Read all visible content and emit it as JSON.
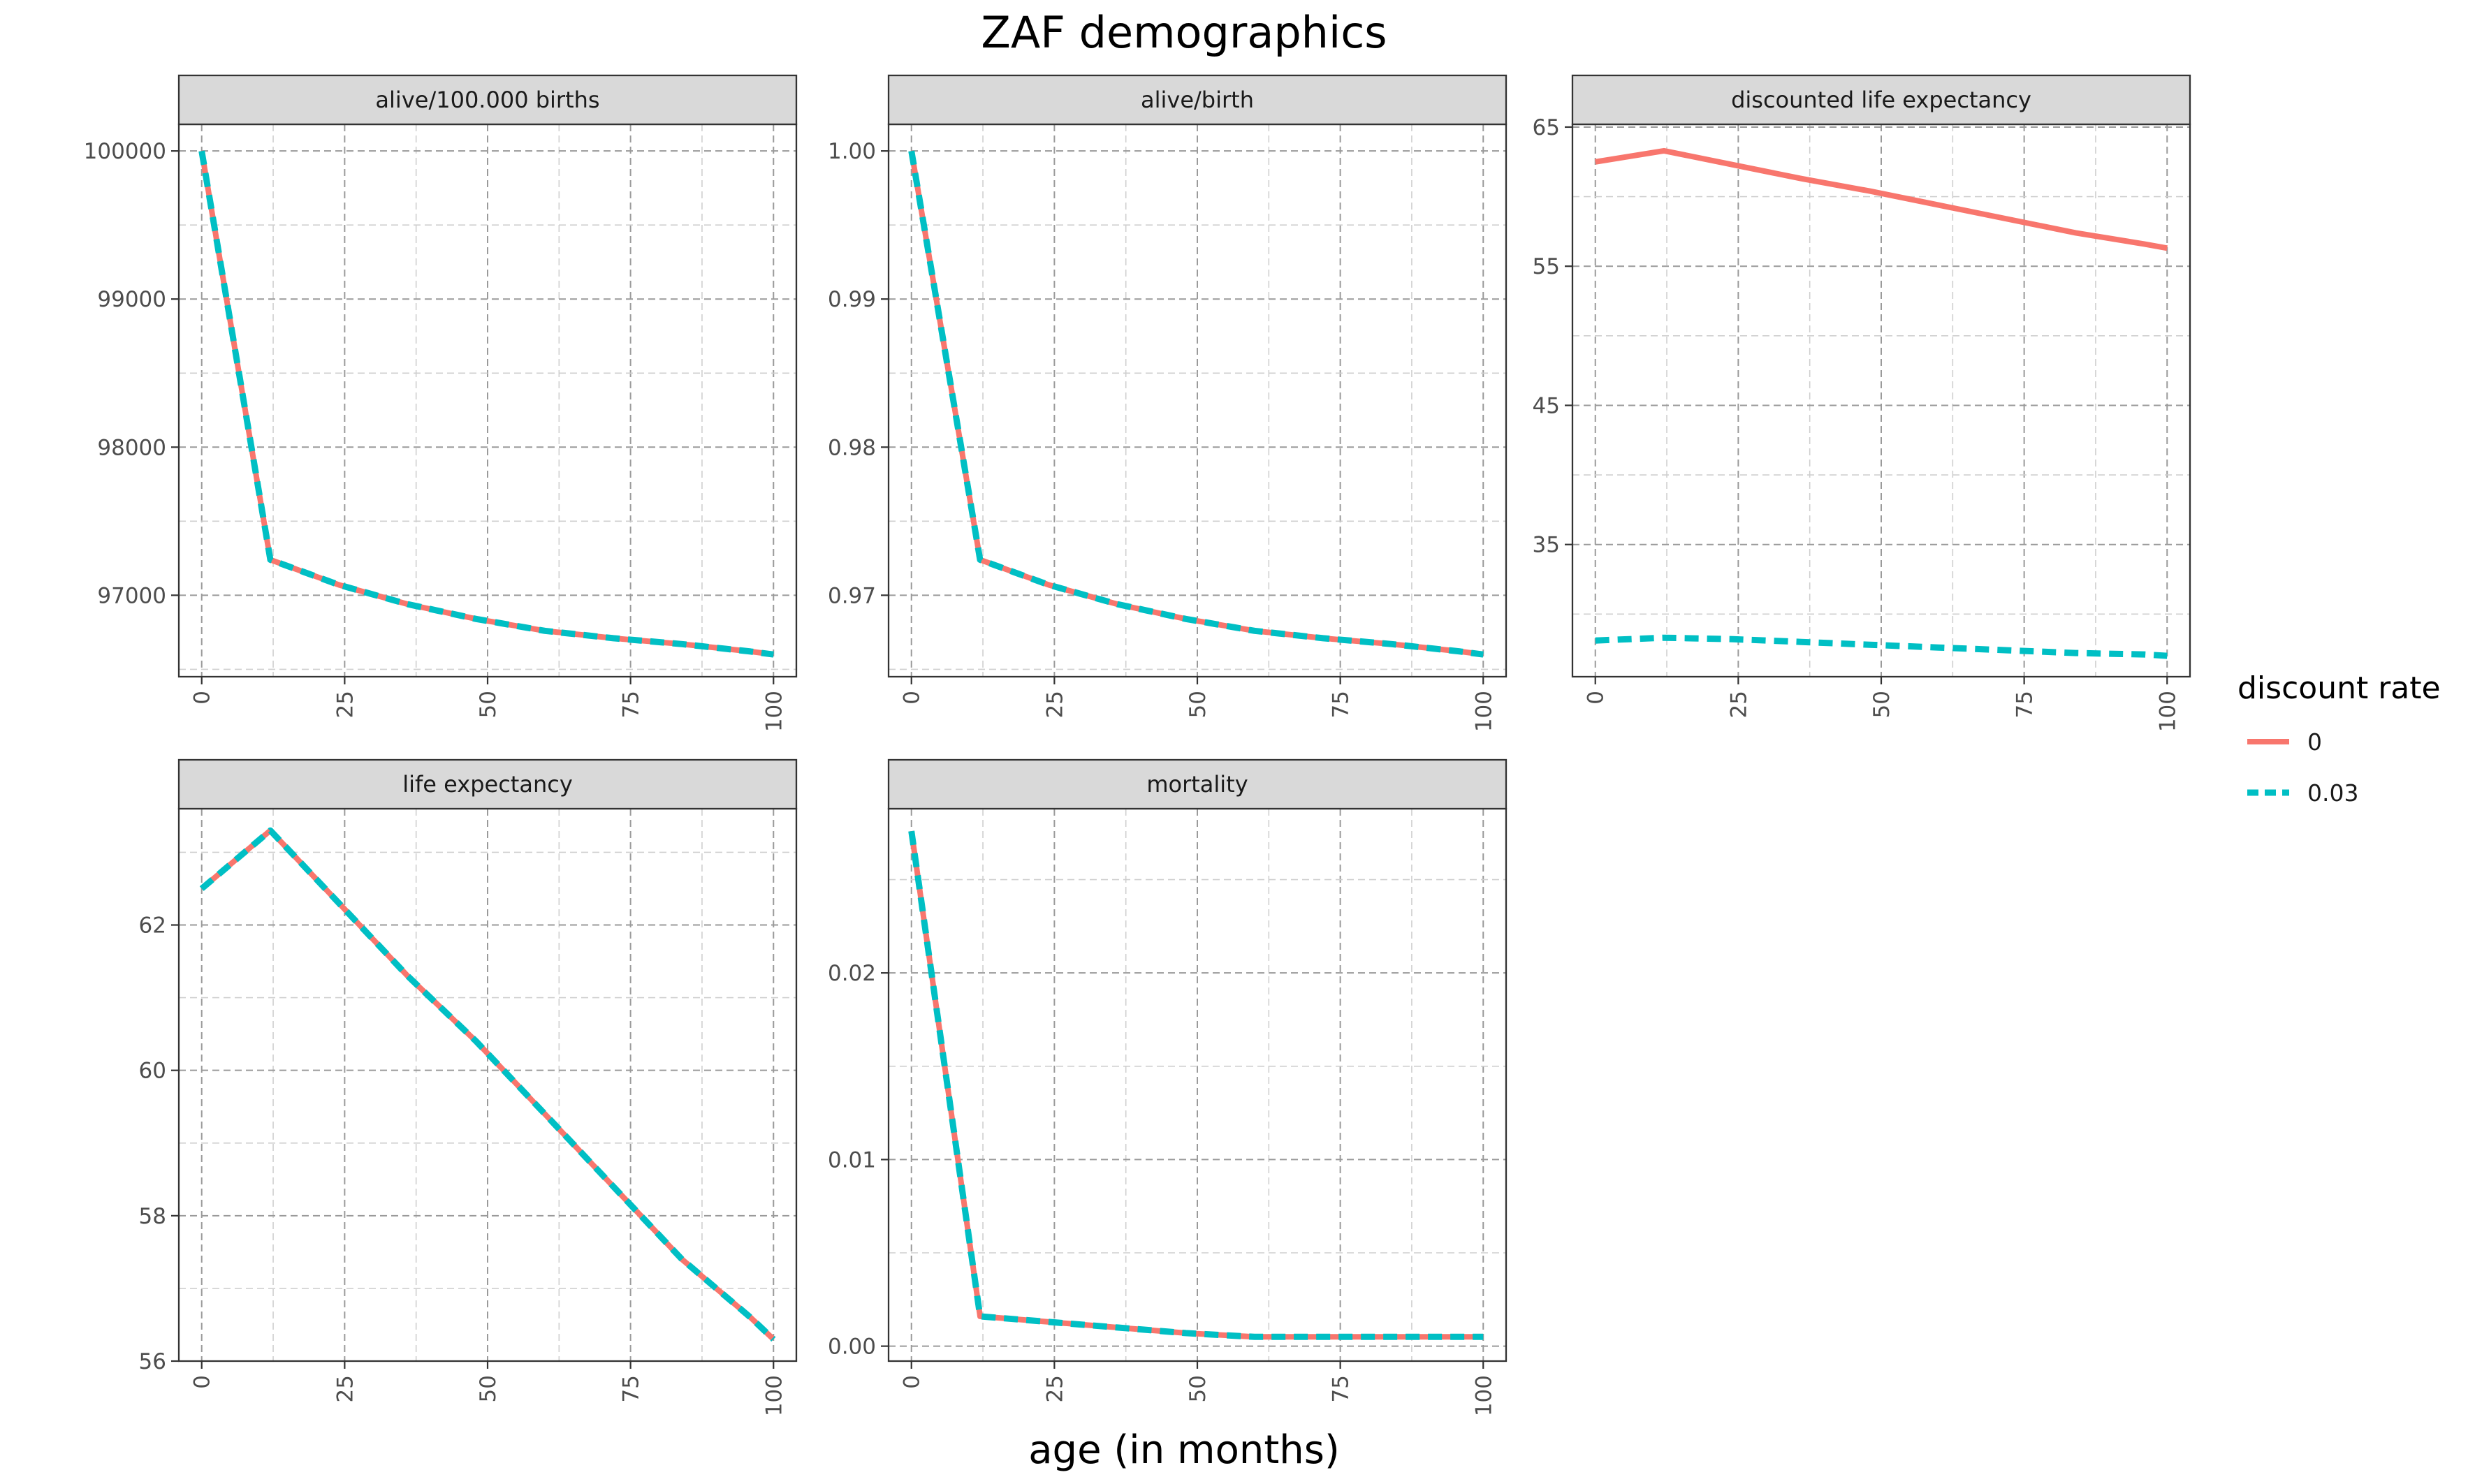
{
  "chart_data": {
    "type": "line",
    "title": "ZAF demographics",
    "xlabel": "age (in months)",
    "ylabel": "",
    "grid": true,
    "legend": {
      "title": "discount rate",
      "placement": "right",
      "entries": [
        {
          "label": "0",
          "color": "#F8766D",
          "linestyle": "solid"
        },
        {
          "label": "0.03",
          "color": "#00BFC4",
          "linestyle": "dashed"
        }
      ]
    },
    "facets": [
      {
        "label": "alive/100.000 births",
        "xlim": [
          -4,
          104
        ],
        "ylim": [
          96450,
          100180
        ],
        "x_ticks": [
          "0",
          "25",
          "50",
          "75",
          "100"
        ],
        "y_ticks": [
          "97000",
          "98000",
          "99000",
          "100000"
        ],
        "series": [
          {
            "name": "0",
            "x": [
              0,
              12,
              24,
              36,
              48,
              60,
              72,
              84,
              96,
              100
            ],
            "values": [
              100000,
              97240,
              97070,
              96940,
              96840,
              96760,
              96710,
              96670,
              96620,
              96600
            ]
          },
          {
            "name": "0.03",
            "x": [
              0,
              12,
              24,
              36,
              48,
              60,
              72,
              84,
              96,
              100
            ],
            "values": [
              100000,
              97240,
              97070,
              96940,
              96840,
              96760,
              96710,
              96670,
              96620,
              96600
            ]
          }
        ]
      },
      {
        "label": "alive/birth",
        "xlim": [
          -4,
          104
        ],
        "ylim": [
          0.9645,
          1.0018
        ],
        "x_ticks": [
          "0",
          "25",
          "50",
          "75",
          "100"
        ],
        "y_ticks": [
          "0.97",
          "0.98",
          "0.99",
          "1.00"
        ],
        "series": [
          {
            "name": "0",
            "x": [
              0,
              12,
              24,
              36,
              48,
              60,
              72,
              84,
              96,
              100
            ],
            "values": [
              1.0,
              0.9724,
              0.9707,
              0.9694,
              0.9684,
              0.9676,
              0.9671,
              0.9667,
              0.9662,
              0.966
            ]
          },
          {
            "name": "0.03",
            "x": [
              0,
              12,
              24,
              36,
              48,
              60,
              72,
              84,
              96,
              100
            ],
            "values": [
              1.0,
              0.9724,
              0.9707,
              0.9694,
              0.9684,
              0.9676,
              0.9671,
              0.9667,
              0.9662,
              0.966
            ]
          }
        ]
      },
      {
        "label": "discounted life expectancy",
        "xlim": [
          -4,
          104
        ],
        "ylim": [
          25.5,
          65.2
        ],
        "x_ticks": [
          "0",
          "25",
          "50",
          "75",
          "100"
        ],
        "y_ticks": [
          "35",
          "45",
          "55",
          "65"
        ],
        "series": [
          {
            "name": "0",
            "x": [
              0,
              12,
              24,
              36,
              48,
              60,
              72,
              84,
              96,
              100
            ],
            "values": [
              62.5,
              63.3,
              62.3,
              61.3,
              60.4,
              59.4,
              58.4,
              57.4,
              56.6,
              56.3
            ]
          },
          {
            "name": "0.03",
            "x": [
              0,
              12,
              24,
              36,
              48,
              60,
              72,
              84,
              96,
              100
            ],
            "values": [
              28.1,
              28.3,
              28.2,
              28.0,
              27.8,
              27.6,
              27.4,
              27.2,
              27.1,
              27.0
            ]
          }
        ]
      },
      {
        "label": "life expectancy",
        "xlim": [
          -4,
          104
        ],
        "ylim": [
          56.0,
          63.6
        ],
        "x_ticks": [
          "0",
          "25",
          "50",
          "75",
          "100"
        ],
        "y_ticks": [
          "56",
          "58",
          "60",
          "62"
        ],
        "series": [
          {
            "name": "0",
            "x": [
              0,
              12,
              24,
              36,
              48,
              60,
              72,
              84,
              96,
              100
            ],
            "values": [
              62.5,
              63.3,
              62.3,
              61.3,
              60.4,
              59.4,
              58.4,
              57.4,
              56.6,
              56.3
            ]
          },
          {
            "name": "0.03",
            "x": [
              0,
              12,
              24,
              36,
              48,
              60,
              72,
              84,
              96,
              100
            ],
            "values": [
              62.5,
              63.3,
              62.3,
              61.3,
              60.4,
              59.4,
              58.4,
              57.4,
              56.6,
              56.3
            ]
          }
        ]
      },
      {
        "label": "mortality",
        "xlim": [
          -4,
          104
        ],
        "ylim": [
          -0.0008,
          0.0288
        ],
        "x_ticks": [
          "0",
          "25",
          "50",
          "75",
          "100"
        ],
        "y_ticks": [
          "0.00",
          "0.01",
          "0.02"
        ],
        "series": [
          {
            "name": "0",
            "x": [
              0,
              12,
              24,
              36,
              48,
              60,
              72,
              84,
              96,
              100
            ],
            "values": [
              0.0276,
              0.0016,
              0.0013,
              0.001,
              0.0007,
              0.0005,
              0.0005,
              0.0005,
              0.0005,
              0.0005
            ]
          },
          {
            "name": "0.03",
            "x": [
              0,
              12,
              24,
              36,
              48,
              60,
              72,
              84,
              96,
              100
            ],
            "values": [
              0.0276,
              0.0016,
              0.0013,
              0.001,
              0.0007,
              0.0005,
              0.0005,
              0.0005,
              0.0005,
              0.0005
            ]
          }
        ]
      }
    ]
  }
}
